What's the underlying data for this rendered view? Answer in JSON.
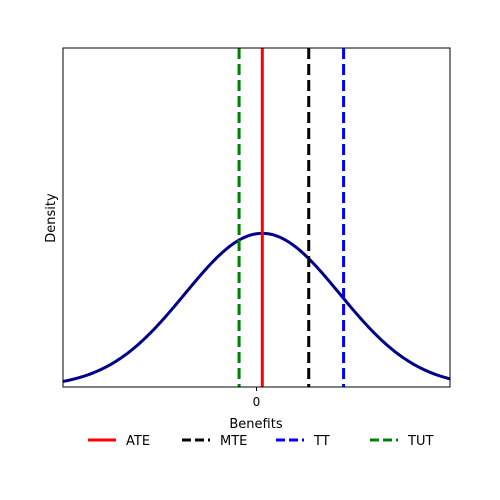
{
  "chart_data": {
    "type": "line",
    "xlabel": "Benefits",
    "ylabel": "Density",
    "xticks": [
      {
        "value": 0,
        "label": "0"
      }
    ],
    "xlim": [
      -5,
      5
    ],
    "ylim": [
      0,
      0.44
    ],
    "grid": false,
    "legend_position": "bottom",
    "distribution": {
      "name": "",
      "mean": 0.15,
      "sd": 2.0,
      "color": "#00008b"
    },
    "vlines": [
      {
        "name": "ATE",
        "x": 0.15,
        "color": "#ff0000",
        "style": "solid"
      },
      {
        "name": "MTE",
        "x": 1.35,
        "color": "#000000",
        "style": "dashed"
      },
      {
        "name": "TT",
        "x": 2.25,
        "color": "#0000ff",
        "style": "dashed"
      },
      {
        "name": "TUT",
        "x": -0.45,
        "color": "#008000",
        "style": "dashed"
      }
    ]
  }
}
